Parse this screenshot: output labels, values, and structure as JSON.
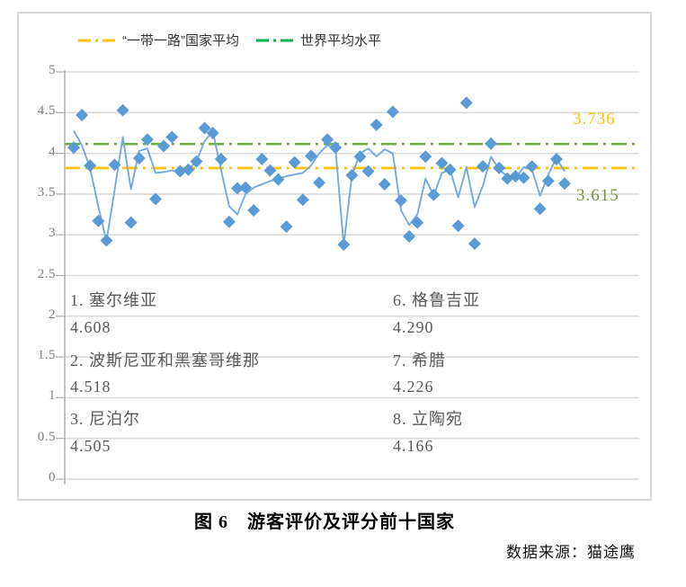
{
  "figure": {
    "caption": "图 6　游客评价及评分前十国家",
    "source": "数据来源：猫途鹰"
  },
  "legend": {
    "belt_road": {
      "label": "“一带一路”国家平均",
      "color": "#FFC000"
    },
    "world": {
      "label": "世界平均水平",
      "color": "#00B050"
    }
  },
  "annotations": {
    "upper": {
      "text": "3.736",
      "color": "#FFC000"
    },
    "lower": {
      "text": "3.615",
      "color": "#76933C"
    }
  },
  "ranking": {
    "left": [
      {
        "name": "1. 塞尔维亚",
        "score": "4.608"
      },
      {
        "name": "2. 波斯尼亚和黑塞哥维那",
        "score": "4.518"
      },
      {
        "name": "3. 尼泊尔",
        "score": "4.505"
      }
    ],
    "right": [
      {
        "name": "6. 格鲁吉亚",
        "score": "4.290"
      },
      {
        "name": "7. 希腊",
        "score": "4.226"
      },
      {
        "name": "8. 立陶宛",
        "score": "4.166"
      }
    ]
  },
  "chart_data": {
    "type": "scatter",
    "title": "",
    "xlabel": "",
    "ylabel": "",
    "x_note": "61 Belt-and-Road countries, x-axis unlabeled",
    "y_axis": {
      "min": 0,
      "max": 5,
      "step": 0.5
    },
    "grid": true,
    "reference_lines": [
      {
        "name": "world-average-line",
        "value": 4.115,
        "color": "#70AD47",
        "style": "dash-dot"
      },
      {
        "name": "belt-road-average-line",
        "value": 3.82,
        "color": "#FFC000",
        "style": "dash-dot"
      }
    ],
    "series": [
      {
        "name": "country-rating-scatter",
        "type": "scatter",
        "marker": "diamond",
        "color": "#5B9BD5",
        "values": [
          4.07,
          4.47,
          3.85,
          3.17,
          2.93,
          3.86,
          4.53,
          3.15,
          3.94,
          4.17,
          3.44,
          4.09,
          4.2,
          3.78,
          3.8,
          3.9,
          4.31,
          4.25,
          3.93,
          3.16,
          3.57,
          3.58,
          3.3,
          3.93,
          3.79,
          3.68,
          3.1,
          3.89,
          3.43,
          3.97,
          3.64,
          4.17,
          4.07,
          2.88,
          3.73,
          3.96,
          3.78,
          4.35,
          3.62,
          4.51,
          3.42,
          2.98,
          3.15,
          3.96,
          3.49,
          3.88,
          3.8,
          3.11,
          4.62,
          2.89,
          3.84,
          4.12,
          3.82,
          3.69,
          3.72,
          3.7,
          3.84,
          3.32,
          3.66,
          3.93,
          3.63
        ]
      },
      {
        "name": "country-rating-line",
        "type": "line",
        "color": "#74A9DC",
        "values": [
          4.28,
          4.1,
          3.82,
          3.35,
          2.92,
          3.55,
          4.2,
          3.56,
          4.03,
          4.06,
          3.76,
          3.77,
          3.79,
          3.77,
          3.8,
          3.9,
          4.15,
          4.27,
          3.8,
          3.35,
          3.25,
          3.5,
          3.58,
          3.62,
          3.66,
          3.69,
          3.72,
          3.74,
          3.76,
          3.85,
          4.0,
          4.1,
          4.05,
          2.87,
          3.73,
          4.0,
          4.06,
          3.96,
          4.05,
          4.0,
          3.3,
          3.12,
          3.25,
          3.69,
          3.48,
          3.76,
          3.8,
          3.46,
          3.83,
          3.34,
          3.6,
          3.96,
          3.8,
          3.72,
          3.7,
          3.83,
          3.8,
          3.48,
          3.74,
          3.94,
          3.78
        ]
      }
    ],
    "colors": {
      "gridline": "#DADADA",
      "axis": "#ABABAB",
      "tick_label": "#7F7F7F"
    }
  }
}
